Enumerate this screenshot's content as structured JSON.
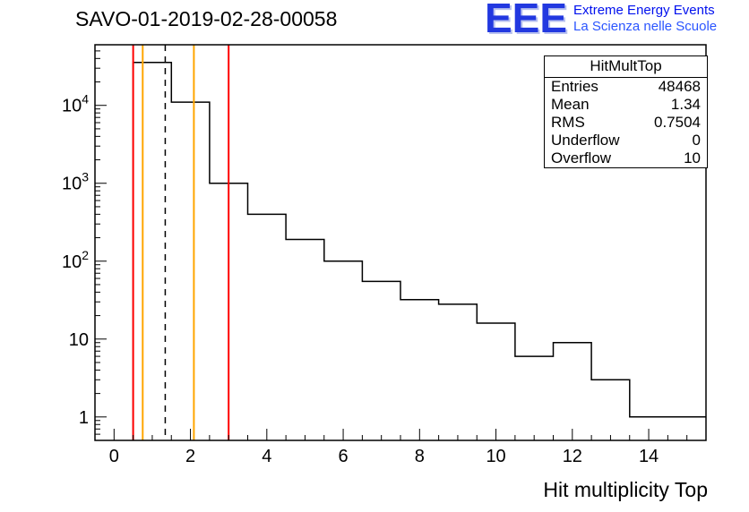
{
  "title": "SAVO-01-2019-02-28-00058",
  "logo": {
    "text": "EEE",
    "line1": "Extreme Energy Events",
    "line2": "La Scienza nelle Scuole",
    "color": "#2238e0"
  },
  "stats": {
    "title": "HitMultTop",
    "rows": [
      [
        "Entries",
        "48468"
      ],
      [
        "Mean",
        "1.34"
      ],
      [
        "RMS",
        "0.7504"
      ],
      [
        "Underflow",
        "0"
      ],
      [
        "Overflow",
        "10"
      ]
    ]
  },
  "chart_data": {
    "type": "bar",
    "style": "step-outline-histogram",
    "title": "SAVO-01-2019-02-28-00058",
    "xlabel": "Hit multiplicity Top",
    "ylabel": "",
    "yscale": "log",
    "xlim": [
      -0.5,
      15.5
    ],
    "ylim": [
      0.5,
      60000
    ],
    "grid": false,
    "line_color": "#000000",
    "bin_centers": [
      0,
      1,
      2,
      3,
      4,
      5,
      6,
      7,
      8,
      9,
      10,
      11,
      12,
      13,
      14,
      15
    ],
    "values": [
      0,
      35500,
      11000,
      1000,
      400,
      190,
      100,
      55,
      32,
      28,
      16,
      6,
      9,
      3,
      1,
      1
    ],
    "x_ticks": [
      {
        "v": 0,
        "label": "0"
      },
      {
        "v": 2,
        "label": "2"
      },
      {
        "v": 4,
        "label": "4"
      },
      {
        "v": 6,
        "label": "6"
      },
      {
        "v": 8,
        "label": "8"
      },
      {
        "v": 10,
        "label": "10"
      },
      {
        "v": 12,
        "label": "12"
      },
      {
        "v": 14,
        "label": "14"
      }
    ],
    "y_ticks": [
      {
        "v": 1,
        "base": "1",
        "exp": ""
      },
      {
        "v": 10,
        "base": "10",
        "exp": ""
      },
      {
        "v": 100,
        "base": "10",
        "exp": "2"
      },
      {
        "v": 1000,
        "base": "10",
        "exp": "3"
      },
      {
        "v": 10000,
        "base": "10",
        "exp": "4"
      }
    ],
    "vlines": [
      {
        "x": 0.5,
        "color": "#ff0000",
        "style": "solid"
      },
      {
        "x": 0.75,
        "color": "#ffa500",
        "style": "solid"
      },
      {
        "x": 1.34,
        "color": "#000000",
        "style": "dashed"
      },
      {
        "x": 2.09,
        "color": "#ffa500",
        "style": "solid"
      },
      {
        "x": 3.0,
        "color": "#ff0000",
        "style": "solid"
      }
    ]
  }
}
